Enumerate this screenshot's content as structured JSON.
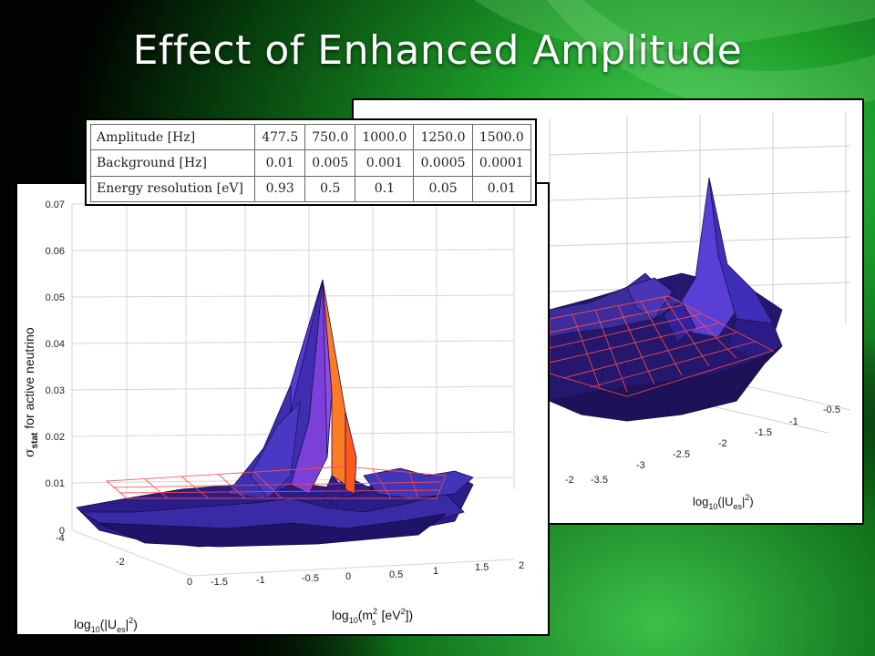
{
  "slide": {
    "title": "Effect of Enhanced Amplitude"
  },
  "table": {
    "rows": [
      [
        "Amplitude [Hz]",
        "477.5",
        "750.0",
        "1000.0",
        "1250.0",
        "1500.0"
      ],
      [
        "Background [Hz]",
        "0.01",
        "0.005",
        "0.001",
        "0.0005",
        "0.0001"
      ],
      [
        "Energy resolution [eV]",
        "0.93",
        "0.5",
        "0.1",
        "0.05",
        "0.01"
      ]
    ]
  },
  "chart_data": [
    {
      "type": "surface3d",
      "title": "",
      "zlabel_main": "σ",
      "zlabel_sub": "stat",
      "zlabel_rest": "for active neutrino",
      "xlabel_main": "log",
      "xlabel_sub": "10",
      "xlabel_rest": "(m",
      "xlabel_sup": "2",
      "xlabel_tail_sub": "s",
      "xlabel_units": "[eV",
      "xlabel_units_sup": "2",
      "xlabel_close": "])",
      "ylabel_main": "log",
      "ylabel_sub": "10",
      "ylabel_rest": "(|U",
      "ylabel_es": "es",
      "ylabel_bar": "|",
      "ylabel_sup": "2",
      "ylabel_close": ")",
      "zticks": [
        "0",
        "0.01",
        "0.02",
        "0.03",
        "0.04",
        "0.05",
        "0.06",
        "0.07"
      ],
      "xticks": [
        "-1.5",
        "-1",
        "-0.5",
        "0",
        "0.5",
        "1",
        "1.5",
        "2"
      ],
      "yticks": [
        "0",
        "-2",
        "-4"
      ],
      "zlim": [
        0,
        0.07
      ],
      "xlim": [
        -1.5,
        2
      ],
      "ylim": [
        -4,
        0
      ],
      "reference_plane_z": 0.01,
      "peak": {
        "x": -0.3,
        "y": -2,
        "z": 0.054
      }
    },
    {
      "type": "surface3d",
      "title": "",
      "ylabel_main": "log",
      "ylabel_sub": "10",
      "ylabel_rest": "(|U",
      "ylabel_es": "es",
      "ylabel_bar": "|",
      "ylabel_sup": "2",
      "ylabel_close": ")",
      "xticks": [
        "-2",
        "-3.5",
        "-3",
        "-2.5",
        "-2",
        "-1.5",
        "-1",
        "-0.5"
      ],
      "peak_relative_height": "high"
    }
  ],
  "colors": {
    "surface_blue": "#3a2fb4",
    "surface_purple": "#6a3fd0",
    "surface_orange": "#ff6a1e",
    "plane_red": "#ff5a5a",
    "bg_green": "#1f9a2a"
  }
}
